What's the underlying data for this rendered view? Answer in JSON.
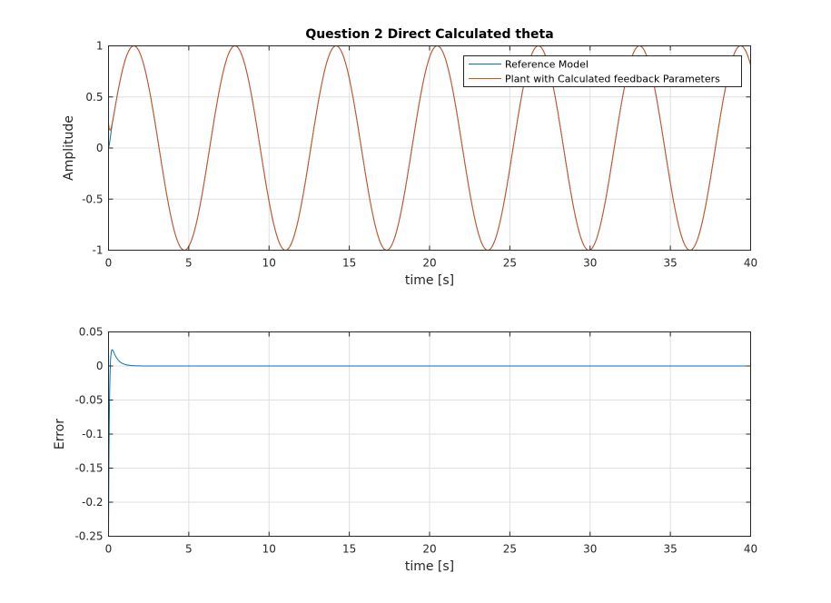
{
  "chart_data": [
    {
      "type": "line",
      "title": "Question 2 Direct Calculated theta",
      "xlabel": "time [s]",
      "ylabel": "Amplitude",
      "xlim": [
        0,
        40
      ],
      "ylim": [
        -1,
        1
      ],
      "xticks": [
        0,
        5,
        10,
        15,
        20,
        25,
        30,
        35,
        40
      ],
      "yticks": [
        -1,
        -0.5,
        0,
        0.5,
        1
      ],
      "xtick_labels": [
        "0",
        "5",
        "10",
        "15",
        "20",
        "25",
        "30",
        "35",
        "40"
      ],
      "ytick_labels": [
        "-1",
        "-0.5",
        "0",
        "0.5",
        "1"
      ],
      "grid": true,
      "legend_position": "top-right",
      "series": [
        {
          "name": "Reference Model",
          "color": "#0072BD",
          "function": "sin(t) with period 2π and small initial transient",
          "x": [
            0,
            1,
            2,
            3,
            4,
            5,
            6,
            7,
            8,
            9,
            10,
            15,
            20,
            25,
            30,
            35,
            40
          ],
          "y": [
            0,
            0.84,
            0.91,
            0.14,
            -0.76,
            -0.96,
            -0.28,
            0.66,
            0.99,
            0.41,
            -0.54,
            0.65,
            0.91,
            -0.13,
            -0.99,
            -0.43,
            0.75
          ]
        },
        {
          "name": "Plant with Calculated feedback Parameters",
          "color": "#D95319",
          "function": "sin(t) starting near 0.25 then tracking reference",
          "x": [
            0,
            1,
            2,
            3,
            4,
            5,
            6,
            7,
            8,
            9,
            10,
            15,
            20,
            25,
            30,
            35,
            40
          ],
          "y": [
            0.25,
            0.84,
            0.91,
            0.14,
            -0.76,
            -0.96,
            -0.28,
            0.66,
            0.99,
            0.41,
            -0.54,
            0.65,
            0.91,
            -0.13,
            -0.99,
            -0.43,
            0.75
          ]
        }
      ]
    },
    {
      "type": "line",
      "title": "",
      "xlabel": "time [s]",
      "ylabel": "Error",
      "xlim": [
        0,
        40
      ],
      "ylim": [
        -0.25,
        0.05
      ],
      "xticks": [
        0,
        5,
        10,
        15,
        20,
        25,
        30,
        35,
        40
      ],
      "yticks": [
        -0.25,
        -0.2,
        -0.15,
        -0.1,
        -0.05,
        0,
        0.05
      ],
      "xtick_labels": [
        "0",
        "5",
        "10",
        "15",
        "20",
        "25",
        "30",
        "35",
        "40"
      ],
      "ytick_labels": [
        "-0.25",
        "-0.2",
        "-0.15",
        "-0.1",
        "-0.05",
        "0",
        "0.05"
      ],
      "grid": true,
      "series": [
        {
          "color": "#0072BD",
          "x": [
            0,
            0.05,
            0.1,
            0.15,
            0.2,
            0.3,
            0.4,
            0.6,
            0.8,
            1.0,
            1.5,
            2.0,
            40
          ],
          "y": [
            -0.25,
            -0.12,
            -0.03,
            0.01,
            0.025,
            0.03,
            0.026,
            0.015,
            0.007,
            0.003,
            0.0005,
            0,
            0
          ]
        }
      ]
    }
  ]
}
